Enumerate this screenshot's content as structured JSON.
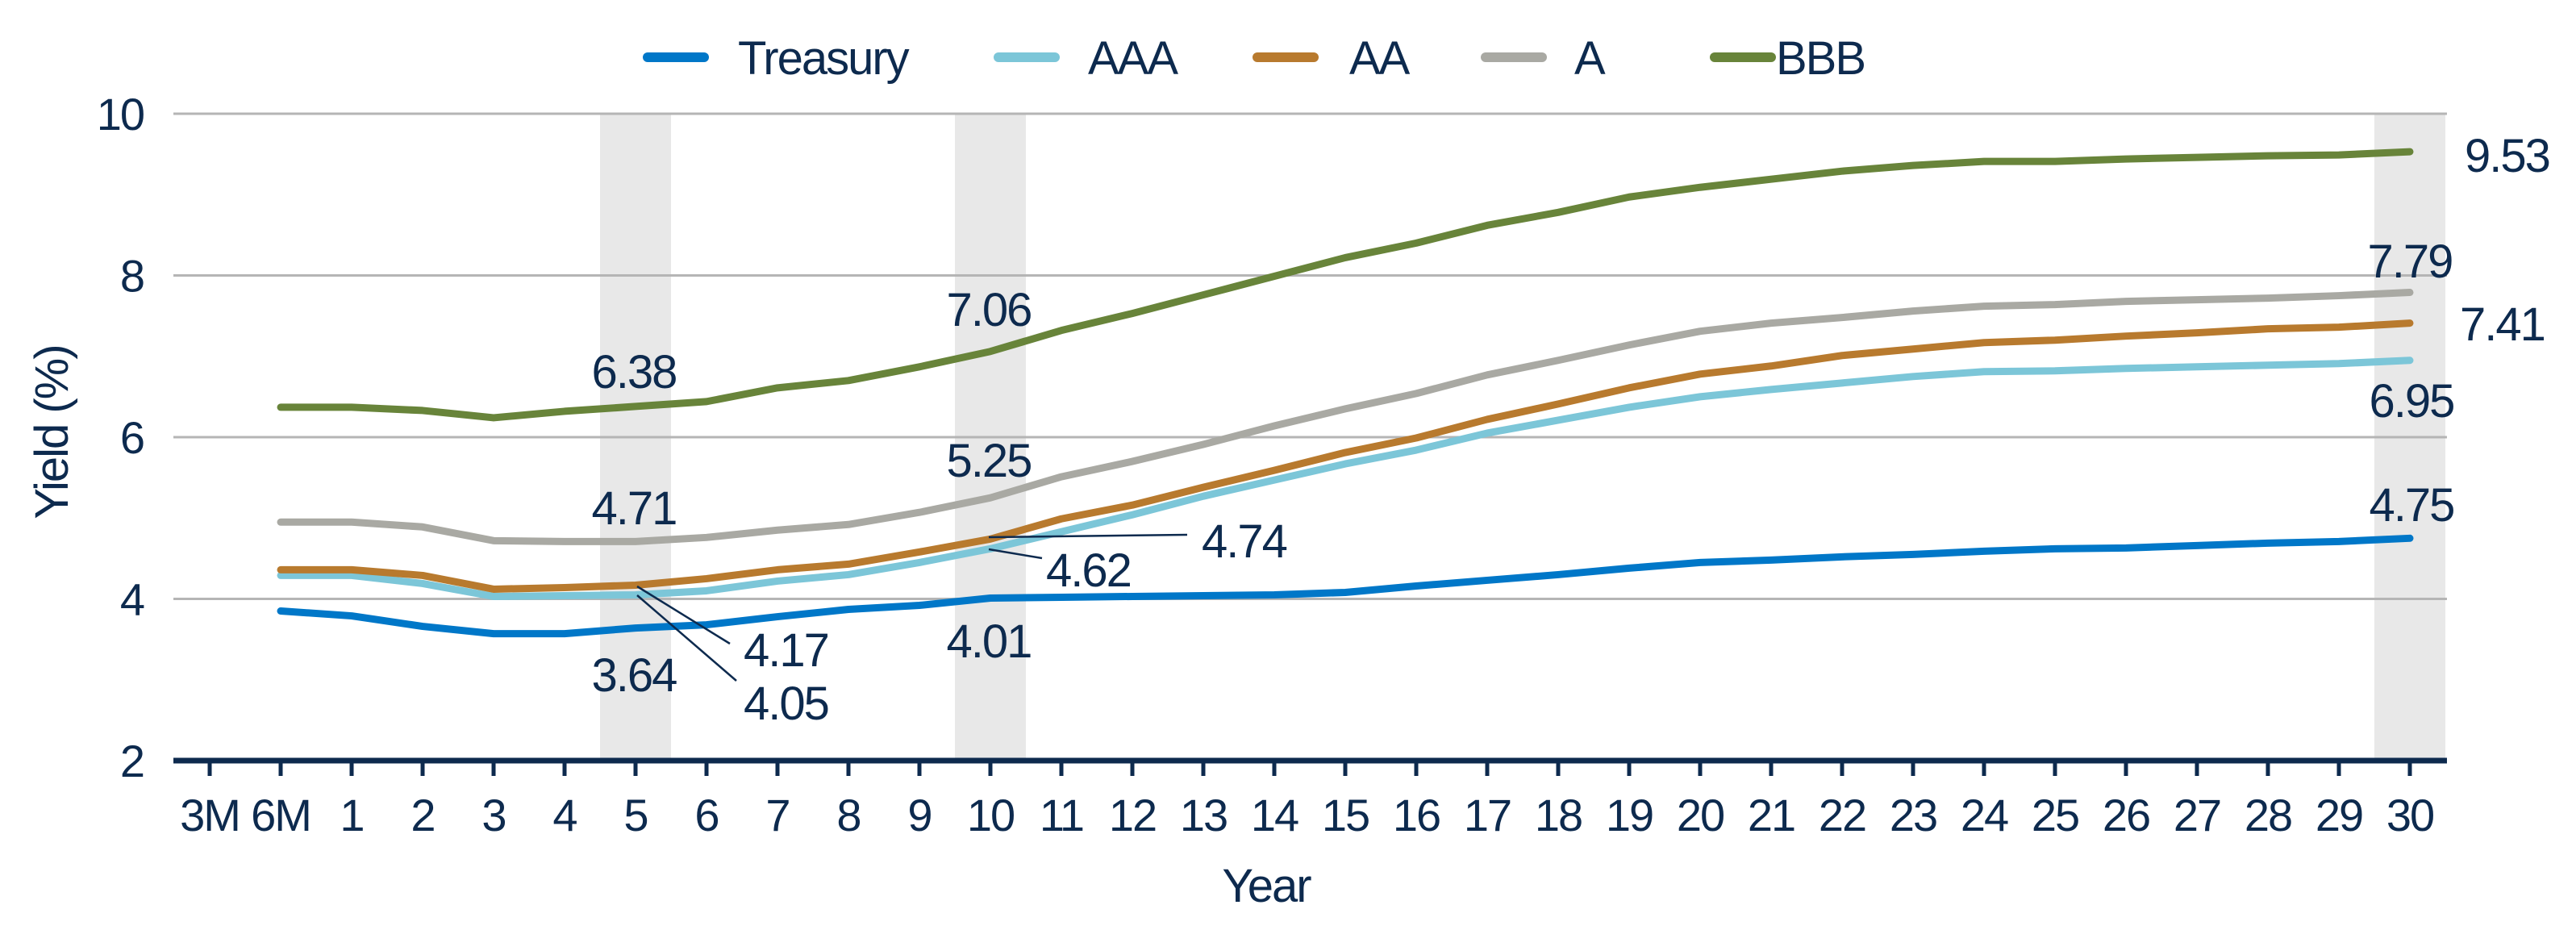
{
  "chart_data": {
    "type": "line",
    "xlabel": "Year",
    "ylabel": "Yield (%)",
    "ylim": [
      2,
      10
    ],
    "yticks": [
      "2",
      "4",
      "6",
      "8",
      "10"
    ],
    "grid": true,
    "legend_position": "top",
    "highlighted_categories": [
      "5",
      "10",
      "30"
    ],
    "categories": [
      "3M",
      "6M",
      "1",
      "2",
      "3",
      "4",
      "5",
      "6",
      "7",
      "8",
      "9",
      "10",
      "11",
      "12",
      "13",
      "14",
      "15",
      "16",
      "17",
      "18",
      "19",
      "20",
      "21",
      "22",
      "23",
      "24",
      "25",
      "26",
      "27",
      "28",
      "29",
      "30"
    ],
    "series": [
      {
        "name": "Treasury",
        "color": "#0077c8",
        "values": [
          null,
          3.85,
          3.79,
          3.66,
          3.57,
          3.57,
          3.64,
          3.68,
          3.78,
          3.87,
          3.92,
          4.01,
          4.02,
          4.03,
          4.04,
          4.05,
          4.08,
          4.16,
          4.23,
          4.3,
          4.38,
          4.45,
          4.48,
          4.52,
          4.55,
          4.59,
          4.62,
          4.63,
          4.66,
          4.69,
          4.71,
          4.75
        ]
      },
      {
        "name": "AAA",
        "color": "#7cc6d8",
        "values": [
          null,
          4.29,
          4.29,
          4.19,
          4.03,
          4.04,
          4.05,
          4.1,
          4.22,
          4.3,
          4.45,
          4.62,
          4.83,
          5.04,
          5.27,
          5.47,
          5.67,
          5.84,
          6.05,
          6.21,
          6.37,
          6.5,
          6.59,
          6.67,
          6.75,
          6.81,
          6.82,
          6.85,
          6.87,
          6.89,
          6.91,
          6.95
        ]
      },
      {
        "name": "AA",
        "color": "#b87a2e",
        "values": [
          null,
          4.36,
          4.36,
          4.29,
          4.12,
          4.14,
          4.17,
          4.25,
          4.36,
          4.43,
          4.58,
          4.74,
          4.99,
          5.16,
          5.38,
          5.59,
          5.81,
          5.99,
          6.22,
          6.41,
          6.61,
          6.78,
          6.88,
          7.01,
          7.09,
          7.17,
          7.2,
          7.25,
          7.29,
          7.34,
          7.36,
          7.41
        ]
      },
      {
        "name": "A",
        "color": "#a9a9a3",
        "values": [
          null,
          4.95,
          4.95,
          4.89,
          4.72,
          4.71,
          4.71,
          4.76,
          4.85,
          4.92,
          5.07,
          5.25,
          5.51,
          5.7,
          5.91,
          6.14,
          6.35,
          6.54,
          6.77,
          6.95,
          7.14,
          7.31,
          7.41,
          7.48,
          7.56,
          7.62,
          7.64,
          7.68,
          7.7,
          7.72,
          7.75,
          7.79
        ]
      },
      {
        "name": "BBB",
        "color": "#68843a",
        "values": [
          null,
          6.37,
          6.37,
          6.33,
          6.24,
          6.32,
          6.38,
          6.44,
          6.61,
          6.7,
          6.87,
          7.06,
          7.32,
          7.53,
          7.76,
          7.99,
          8.22,
          8.4,
          8.62,
          8.78,
          8.97,
          9.09,
          9.19,
          9.29,
          9.36,
          9.41,
          9.41,
          9.44,
          9.46,
          9.48,
          9.49,
          9.53
        ]
      }
    ],
    "annotations": [
      {
        "text": "6.38",
        "series": "BBB",
        "category": "5"
      },
      {
        "text": "4.71",
        "series": "A",
        "category": "5"
      },
      {
        "text": "4.17",
        "series": "AA",
        "category": "5"
      },
      {
        "text": "4.05",
        "series": "AAA",
        "category": "5"
      },
      {
        "text": "3.64",
        "series": "Treasury",
        "category": "5"
      },
      {
        "text": "7.06",
        "series": "BBB",
        "category": "10"
      },
      {
        "text": "5.25",
        "series": "A",
        "category": "10"
      },
      {
        "text": "4.74",
        "series": "AA",
        "category": "10"
      },
      {
        "text": "4.62",
        "series": "AAA",
        "category": "10"
      },
      {
        "text": "4.01",
        "series": "Treasury",
        "category": "10"
      },
      {
        "text": "9.53",
        "series": "BBB",
        "category": "30"
      },
      {
        "text": "7.79",
        "series": "A",
        "category": "30"
      },
      {
        "text": "7.41",
        "series": "AA",
        "category": "30"
      },
      {
        "text": "6.95",
        "series": "AAA",
        "category": "30"
      },
      {
        "text": "4.75",
        "series": "Treasury",
        "category": "30"
      }
    ]
  }
}
